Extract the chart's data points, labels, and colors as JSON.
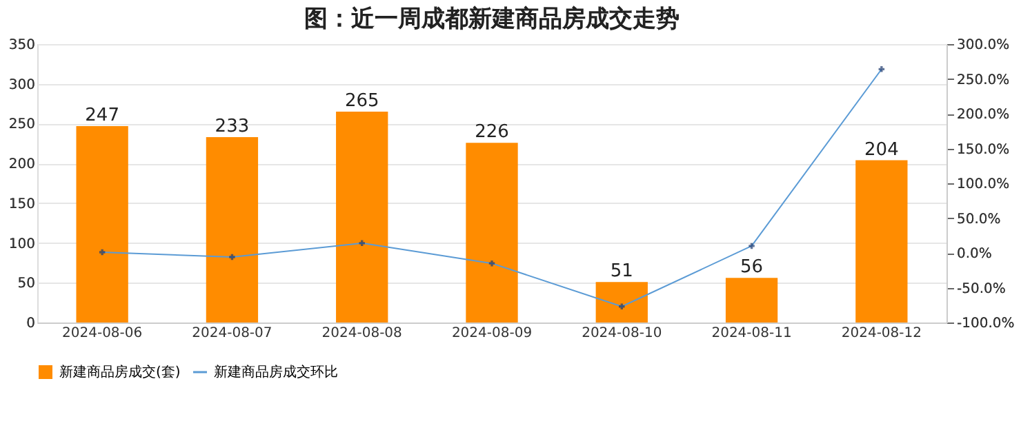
{
  "chart_data": {
    "type": "bar",
    "title": "图：近一周成都新建商品房成交走势",
    "categories": [
      "2024-08-06",
      "2024-08-07",
      "2024-08-08",
      "2024-08-09",
      "2024-08-10",
      "2024-08-11",
      "2024-08-12"
    ],
    "series": [
      {
        "name": "新建商品房成交(套)",
        "color": "#ff8c00",
        "values": [
          247,
          233,
          265,
          226,
          51,
          56,
          204
        ],
        "data_labels": true
      },
      {
        "name": "新建商品房成交环比",
        "type": "line",
        "axis": "y2",
        "color": "#5b9bd5",
        "marker": "cross",
        "values": [
          1,
          -6,
          14,
          -15,
          -77,
          10,
          264
        ]
      }
    ],
    "ylim": [
      0,
      350
    ],
    "yticks": [
      0,
      50,
      100,
      150,
      200,
      250,
      300,
      350
    ],
    "y2lim": [
      -100,
      300
    ],
    "y2ticks": [
      {
        "value": -100,
        "label": "-100.0%"
      },
      {
        "value": -50,
        "label": "-50.0%"
      },
      {
        "value": 0,
        "label": "0.0%"
      },
      {
        "value": 50,
        "label": "50.0%"
      },
      {
        "value": 100,
        "label": "100.0%"
      },
      {
        "value": 150,
        "label": "150.0%"
      },
      {
        "value": 200,
        "label": "200.0%"
      },
      {
        "value": 250,
        "label": "250.0%"
      },
      {
        "value": 300,
        "label": "300.0%"
      }
    ],
    "grid": "y",
    "legend": "bottom"
  }
}
